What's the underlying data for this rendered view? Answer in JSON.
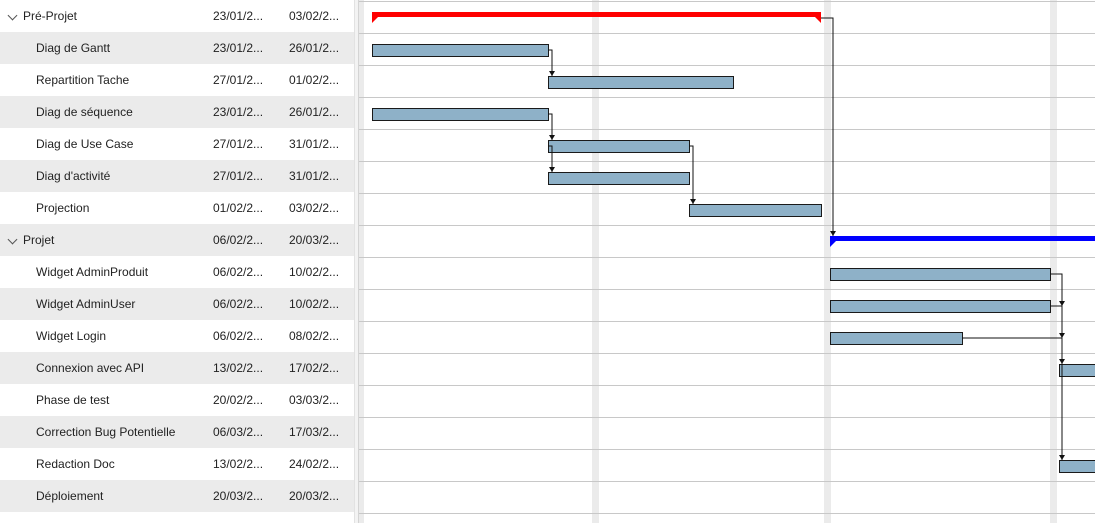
{
  "tasks": [
    {
      "name": "Pré-Projet",
      "start": "23/01/2...",
      "end": "03/02/2...",
      "type": "group"
    },
    {
      "name": "Diag de Gantt",
      "start": "23/01/2...",
      "end": "26/01/2...",
      "type": "task"
    },
    {
      "name": "Repartition Tache",
      "start": "27/01/2...",
      "end": "01/02/2...",
      "type": "task"
    },
    {
      "name": "Diag de séquence",
      "start": "23/01/2...",
      "end": "26/01/2...",
      "type": "task"
    },
    {
      "name": "Diag de Use Case",
      "start": "27/01/2...",
      "end": "31/01/2...",
      "type": "task"
    },
    {
      "name": "Diag d'activité",
      "start": "27/01/2...",
      "end": "31/01/2...",
      "type": "task"
    },
    {
      "name": "Projection",
      "start": "01/02/2...",
      "end": "03/02/2...",
      "type": "task"
    },
    {
      "name": "Projet",
      "start": "06/02/2...",
      "end": "20/03/2...",
      "type": "group"
    },
    {
      "name": "Widget AdminProduit",
      "start": "06/02/2...",
      "end": "10/02/2...",
      "type": "task"
    },
    {
      "name": "Widget AdminUser",
      "start": "06/02/2...",
      "end": "10/02/2...",
      "type": "task"
    },
    {
      "name": "Widget Login",
      "start": "06/02/2...",
      "end": "08/02/2...",
      "type": "task"
    },
    {
      "name": "Connexion avec API",
      "start": "13/02/2...",
      "end": "17/02/2...",
      "type": "task"
    },
    {
      "name": "Phase de test",
      "start": "20/02/2...",
      "end": "03/03/2...",
      "type": "task"
    },
    {
      "name": "Correction Bug Potentielle",
      "start": "06/03/2...",
      "end": "17/03/2...",
      "type": "task"
    },
    {
      "name": "Redaction Doc",
      "start": "13/02/2...",
      "end": "24/02/2...",
      "type": "task"
    },
    {
      "name": "Déploiement",
      "start": "20/03/2...",
      "end": "20/03/2...",
      "type": "task"
    }
  ],
  "colors": {
    "group_preprojet": "#ff0000",
    "group_projet": "#0000ff",
    "task_bar": "#8eb1c8",
    "row_shade": "#ebebeb"
  }
}
